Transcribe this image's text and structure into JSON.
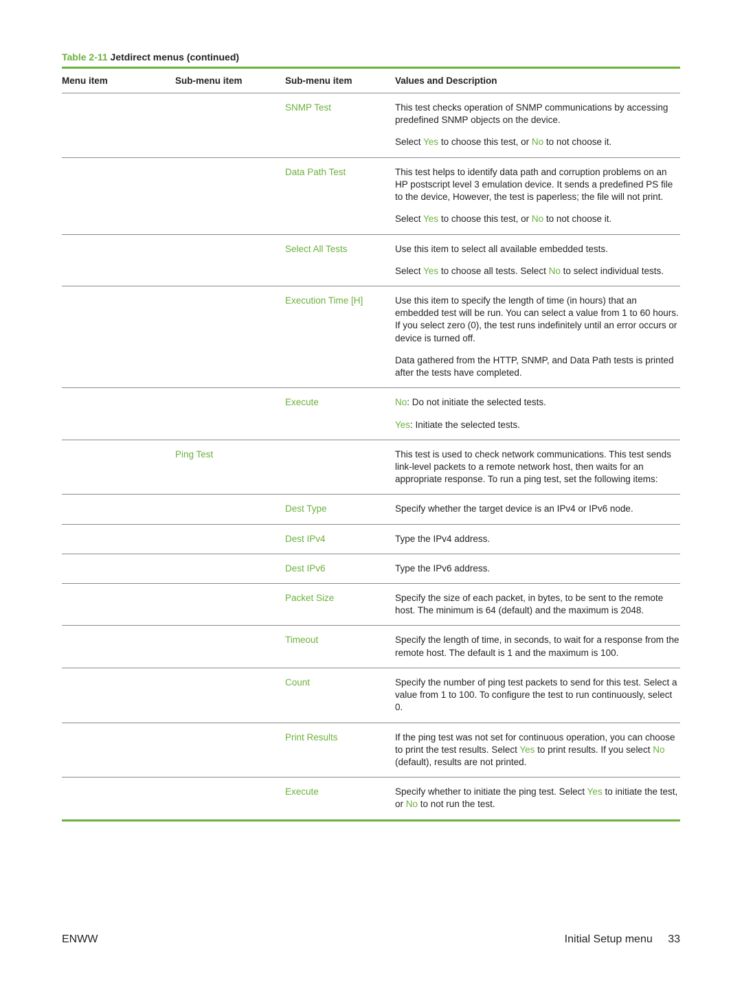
{
  "title": {
    "prefix": "Table 2-11",
    "text": "  Jetdirect menus (continued)"
  },
  "colors": {
    "accent": "#6bb13c",
    "text": "#222222",
    "rule_thin": "#888888"
  },
  "columns": {
    "c1": "Menu item",
    "c2": "Sub-menu item",
    "c3": "Sub-menu item",
    "c4": "Values and Description"
  },
  "rows": [
    {
      "c3": "SNMP Test",
      "c4": [
        {
          "plain": "This test checks operation of SNMP communications by accessing predefined SNMP objects on the device."
        },
        {
          "html": "Select <span class='keyword'>Yes</span> to choose this test, or <span class='keyword'>No</span> to not choose it."
        }
      ],
      "sep": true
    },
    {
      "c3": "Data Path Test",
      "c4": [
        {
          "plain": "This test helps to identify data path and corruption problems on an HP postscript level 3 emulation device. It sends a predefined PS file to the device, However, the test is paperless; the file will not print."
        },
        {
          "html": "Select <span class='keyword'>Yes</span> to choose this test, or <span class='keyword'>No</span> to not choose it."
        }
      ],
      "sep": true
    },
    {
      "c3": "Select All Tests",
      "c4": [
        {
          "plain": "Use this item to select all available embedded tests."
        },
        {
          "html": "Select <span class='keyword'>Yes</span> to choose all tests. Select <span class='keyword'>No</span> to select individual tests."
        }
      ],
      "sep": true
    },
    {
      "c3": "Execution Time [H]",
      "c4": [
        {
          "plain": "Use this item to specify the length of time (in hours) that an embedded test will be run. You can select a value from 1 to 60 hours. If you select zero (0), the test runs indefinitely until an error occurs or device is turned off."
        },
        {
          "plain": "Data gathered from the HTTP, SNMP, and Data Path tests is printed after the tests have completed."
        }
      ],
      "sep": true
    },
    {
      "c3": "Execute",
      "c4": [
        {
          "html": "<span class='keyword'>No</span>: Do not initiate the selected tests."
        },
        {
          "html": "<span class='keyword'>Yes</span>: Initiate the selected tests."
        }
      ],
      "sep_section": true
    },
    {
      "c2": "Ping Test",
      "c4": [
        {
          "plain": "This test is used to check network communications. This test sends link-level packets to a remote network host, then waits for an appropriate response. To run a ping test, set the following items:"
        }
      ],
      "sep": true
    },
    {
      "c3": "Dest Type",
      "c4": [
        {
          "plain": "Specify whether the target device is an IPv4 or IPv6 node."
        }
      ],
      "sep": true
    },
    {
      "c3": "Dest IPv4",
      "c4": [
        {
          "plain": "Type the IPv4 address."
        }
      ],
      "sep": true
    },
    {
      "c3": "Dest IPv6",
      "c4": [
        {
          "plain": "Type the IPv6 address."
        }
      ],
      "sep": true
    },
    {
      "c3": "Packet Size",
      "c4": [
        {
          "plain": "Specify the size of each packet, in bytes, to be sent to the remote host. The minimum is 64 (default) and the maximum is 2048."
        }
      ],
      "sep": true
    },
    {
      "c3": "Timeout",
      "c4": [
        {
          "plain": "Specify the length of time, in seconds, to wait for a response from the remote host. The default is 1 and the maximum is 100."
        }
      ],
      "sep": true
    },
    {
      "c3": "Count",
      "c4": [
        {
          "plain": "Specify the number of ping test packets to send for this test. Select a value from 1 to 100. To configure the test to run continuously, select 0."
        }
      ],
      "sep": true
    },
    {
      "c3": "Print Results",
      "c4": [
        {
          "html": "If the ping test was not set for continuous operation, you can choose to print the test results. Select <span class='keyword'>Yes</span> to print results. If you select <span class='keyword'>No</span> (default), results are not printed."
        }
      ],
      "sep": true
    },
    {
      "c3": "Execute",
      "c4": [
        {
          "html": "Specify whether to initiate the ping test. Select <span class='keyword'>Yes</span> to initiate the test, or <span class='keyword'>No</span> to not run the test."
        }
      ],
      "sep_bottom_thick": true
    }
  ],
  "footer": {
    "left": "ENWW",
    "right_label": "Initial Setup menu",
    "page_num": "33"
  }
}
